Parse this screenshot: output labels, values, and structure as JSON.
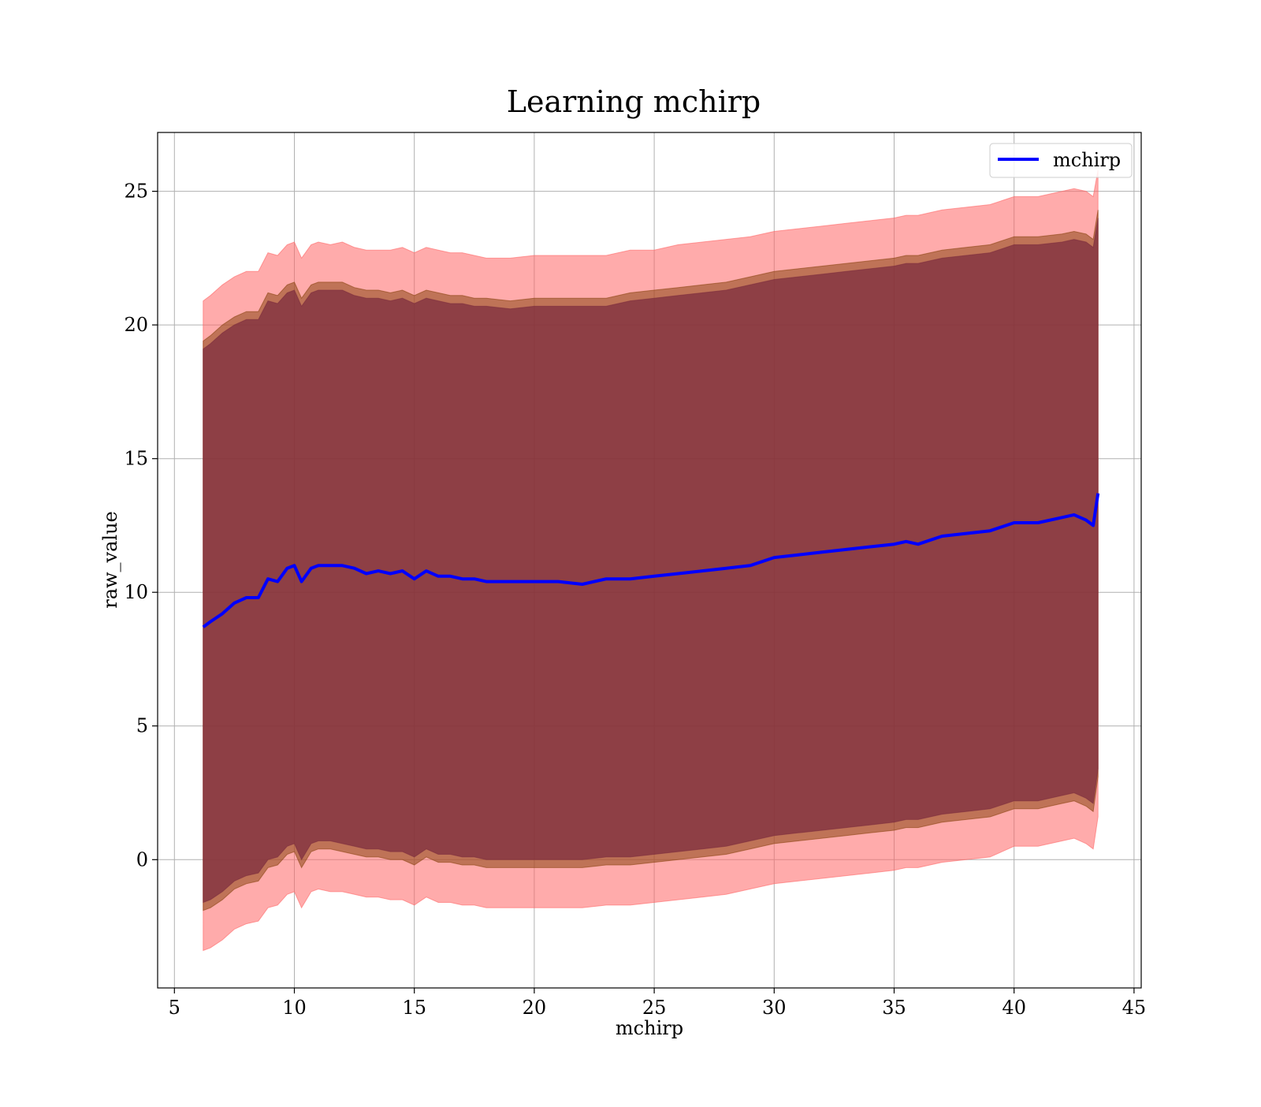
{
  "chart_data": {
    "type": "line",
    "title": "Learning mchirp",
    "xlabel": "mchirp",
    "ylabel": "raw_value",
    "xlim": [
      4.3,
      45.3
    ],
    "ylim": [
      -4.8,
      27.2
    ],
    "xticks": [
      5,
      10,
      15,
      20,
      25,
      30,
      35,
      40,
      45
    ],
    "yticks": [
      0,
      5,
      10,
      15,
      20,
      25
    ],
    "grid": true,
    "legend": {
      "position": "top-right",
      "entries": [
        "mchirp"
      ]
    },
    "colors": {
      "line": "#0000ff",
      "outer_band": "#ff6666",
      "middle_band": "#8b4513",
      "inner_band": "#7b2b3e",
      "grid": "#b0b0b0"
    },
    "series": [
      {
        "name": "mchirp",
        "x": [
          6.2,
          6.5,
          7.0,
          7.5,
          8.0,
          8.5,
          8.9,
          9.3,
          9.7,
          10.0,
          10.3,
          10.7,
          11.0,
          11.5,
          12.0,
          12.5,
          13.0,
          13.5,
          14.0,
          14.5,
          15.0,
          15.5,
          16.0,
          16.5,
          17.0,
          17.5,
          18.0,
          19.0,
          20.0,
          21.0,
          22.0,
          23.0,
          24.0,
          25.0,
          26.0,
          27.0,
          28.0,
          29.0,
          30.0,
          31.0,
          32.0,
          33.0,
          34.0,
          35.0,
          35.5,
          36.0,
          37.0,
          38.0,
          39.0,
          40.0,
          41.0,
          42.0,
          42.5,
          43.0,
          43.3,
          43.5
        ],
        "y": [
          8.7,
          8.9,
          9.2,
          9.6,
          9.8,
          9.8,
          10.5,
          10.4,
          10.9,
          11.0,
          10.4,
          10.9,
          11.0,
          11.0,
          11.0,
          10.9,
          10.7,
          10.8,
          10.7,
          10.8,
          10.5,
          10.8,
          10.6,
          10.6,
          10.5,
          10.5,
          10.4,
          10.4,
          10.4,
          10.4,
          10.3,
          10.5,
          10.5,
          10.6,
          10.7,
          10.8,
          10.9,
          11.0,
          11.3,
          11.4,
          11.5,
          11.6,
          11.7,
          11.8,
          11.9,
          11.8,
          12.1,
          12.2,
          12.3,
          12.6,
          12.6,
          12.8,
          12.9,
          12.7,
          12.5,
          13.7
        ],
        "bands": [
          {
            "upper": [
              20.9,
              21.1,
              21.5,
              21.8,
              22.0,
              22.0,
              22.7,
              22.6,
              23.0,
              23.1,
              22.5,
              23.0,
              23.1,
              23.0,
              23.1,
              22.9,
              22.8,
              22.8,
              22.8,
              22.9,
              22.7,
              22.9,
              22.8,
              22.7,
              22.7,
              22.6,
              22.5,
              22.5,
              22.6,
              22.6,
              22.6,
              22.6,
              22.8,
              22.8,
              23.0,
              23.1,
              23.2,
              23.3,
              23.5,
              23.6,
              23.7,
              23.8,
              23.9,
              24.0,
              24.1,
              24.1,
              24.3,
              24.4,
              24.5,
              24.8,
              24.8,
              25.0,
              25.1,
              25.0,
              24.8,
              25.8
            ],
            "lower": [
              -3.4,
              -3.3,
              -3.0,
              -2.6,
              -2.4,
              -2.3,
              -1.8,
              -1.7,
              -1.3,
              -1.2,
              -1.8,
              -1.2,
              -1.1,
              -1.2,
              -1.2,
              -1.3,
              -1.4,
              -1.4,
              -1.5,
              -1.5,
              -1.7,
              -1.4,
              -1.6,
              -1.6,
              -1.7,
              -1.7,
              -1.8,
              -1.8,
              -1.8,
              -1.8,
              -1.8,
              -1.7,
              -1.7,
              -1.6,
              -1.5,
              -1.4,
              -1.3,
              -1.1,
              -0.9,
              -0.8,
              -0.7,
              -0.6,
              -0.5,
              -0.4,
              -0.3,
              -0.3,
              -0.1,
              0.0,
              0.1,
              0.5,
              0.5,
              0.7,
              0.8,
              0.6,
              0.4,
              1.6
            ]
          },
          {
            "upper": [
              19.4,
              19.6,
              20.0,
              20.3,
              20.5,
              20.5,
              21.2,
              21.1,
              21.5,
              21.6,
              21.0,
              21.5,
              21.6,
              21.6,
              21.6,
              21.4,
              21.3,
              21.3,
              21.2,
              21.3,
              21.1,
              21.3,
              21.2,
              21.1,
              21.1,
              21.0,
              21.0,
              20.9,
              21.0,
              21.0,
              21.0,
              21.0,
              21.2,
              21.3,
              21.4,
              21.5,
              21.6,
              21.8,
              22.0,
              22.1,
              22.2,
              22.3,
              22.4,
              22.5,
              22.6,
              22.6,
              22.8,
              22.9,
              23.0,
              23.3,
              23.3,
              23.4,
              23.5,
              23.4,
              23.2,
              24.3
            ],
            "lower": [
              -1.9,
              -1.8,
              -1.5,
              -1.1,
              -0.9,
              -0.8,
              -0.3,
              -0.2,
              0.2,
              0.3,
              -0.3,
              0.3,
              0.4,
              0.4,
              0.3,
              0.2,
              0.1,
              0.1,
              0.0,
              0.0,
              -0.2,
              0.1,
              -0.1,
              -0.1,
              -0.2,
              -0.2,
              -0.3,
              -0.3,
              -0.3,
              -0.3,
              -0.3,
              -0.2,
              -0.2,
              -0.1,
              0.0,
              0.1,
              0.2,
              0.4,
              0.6,
              0.7,
              0.8,
              0.9,
              1.0,
              1.1,
              1.2,
              1.2,
              1.4,
              1.5,
              1.6,
              1.9,
              1.9,
              2.1,
              2.2,
              2.0,
              1.8,
              3.1
            ]
          },
          {
            "upper": [
              19.1,
              19.3,
              19.7,
              20.0,
              20.2,
              20.2,
              20.9,
              20.8,
              21.2,
              21.3,
              20.7,
              21.2,
              21.3,
              21.3,
              21.3,
              21.1,
              21.0,
              21.0,
              20.9,
              21.0,
              20.8,
              21.0,
              20.9,
              20.8,
              20.8,
              20.7,
              20.7,
              20.6,
              20.7,
              20.7,
              20.7,
              20.7,
              20.9,
              21.0,
              21.1,
              21.2,
              21.3,
              21.5,
              21.7,
              21.8,
              21.9,
              22.0,
              22.1,
              22.2,
              22.3,
              22.3,
              22.5,
              22.6,
              22.7,
              23.0,
              23.0,
              23.1,
              23.2,
              23.1,
              22.9,
              24.0
            ],
            "lower": [
              -1.6,
              -1.5,
              -1.2,
              -0.8,
              -0.6,
              -0.5,
              0.0,
              0.1,
              0.5,
              0.6,
              0.0,
              0.6,
              0.7,
              0.7,
              0.6,
              0.5,
              0.4,
              0.4,
              0.3,
              0.3,
              0.1,
              0.4,
              0.2,
              0.2,
              0.1,
              0.1,
              0.0,
              0.0,
              0.0,
              0.0,
              0.0,
              0.1,
              0.1,
              0.2,
              0.3,
              0.4,
              0.5,
              0.7,
              0.9,
              1.0,
              1.1,
              1.2,
              1.3,
              1.4,
              1.5,
              1.5,
              1.7,
              1.8,
              1.9,
              2.2,
              2.2,
              2.4,
              2.5,
              2.3,
              2.1,
              3.4
            ]
          }
        ]
      }
    ]
  }
}
